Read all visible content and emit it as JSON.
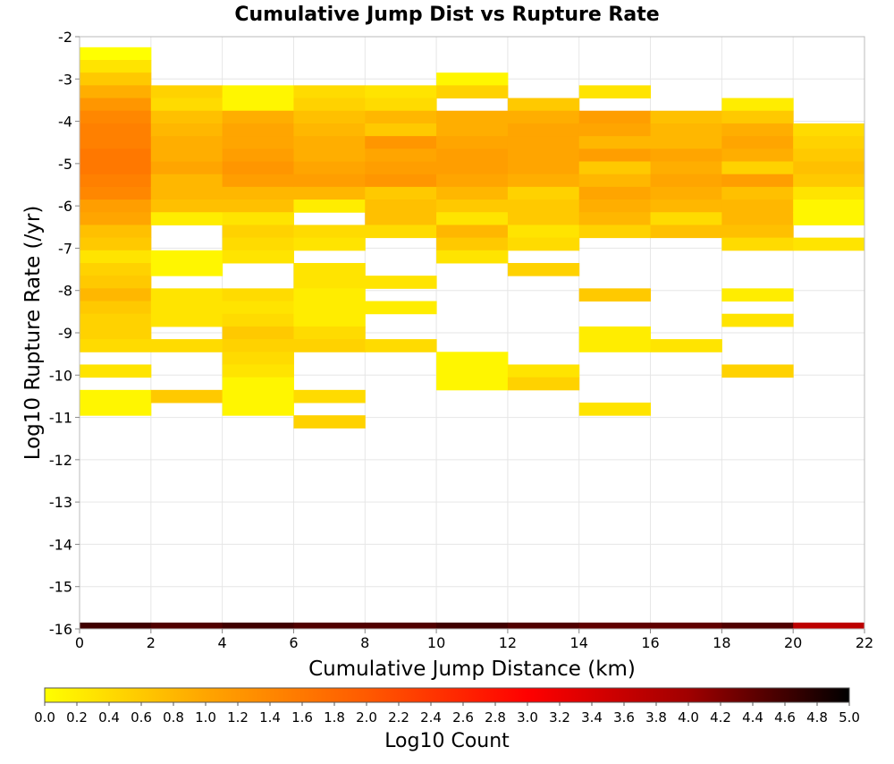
{
  "chart_data": {
    "type": "heatmap",
    "title": "Cumulative Jump Dist vs Rupture Rate",
    "xlabel": "Cumulative Jump Distance (km)",
    "ylabel": "Log10 Rupture Rate (/yr)",
    "xlim": [
      0,
      22
    ],
    "ylim": [
      -16,
      -2
    ],
    "xticks": [
      "0",
      "2",
      "4",
      "6",
      "8",
      "10",
      "12",
      "14",
      "16",
      "18",
      "20",
      "22"
    ],
    "yticks": [
      "-2",
      "-3",
      "-4",
      "-5",
      "-6",
      "-7",
      "-8",
      "-9",
      "-10",
      "-11",
      "-12",
      "-13",
      "-14",
      "-15",
      "-16"
    ],
    "x_bin_width_km": 2,
    "y_bin_height_log10": 0.3,
    "grid": true,
    "colorbar": {
      "label": "Log10 Count",
      "min": 0.0,
      "max": 5.0,
      "ticks": [
        "0.0",
        "0.2",
        "0.4",
        "0.6",
        "0.8",
        "1.0",
        "1.2",
        "1.4",
        "1.6",
        "1.8",
        "2.0",
        "2.2",
        "2.4",
        "2.6",
        "2.8",
        "3.0",
        "3.2",
        "3.4",
        "3.6",
        "3.8",
        "4.0",
        "4.2",
        "4.4",
        "4.6",
        "4.8",
        "5.0"
      ],
      "colors": [
        "#ffff00",
        "#ffa500",
        "#ff5a00",
        "#ff0000",
        "#a00000",
        "#000000"
      ]
    },
    "columns": [
      {
        "x0": 0,
        "x1": 2,
        "cells": [
          [
            -2.4,
            0.0
          ],
          [
            -2.7,
            0.3
          ],
          [
            -3.0,
            0.6
          ],
          [
            -3.3,
            0.9
          ],
          [
            -3.6,
            1.2
          ],
          [
            -3.9,
            1.4
          ],
          [
            -4.2,
            1.5
          ],
          [
            -4.5,
            1.5
          ],
          [
            -4.8,
            1.6
          ],
          [
            -5.1,
            1.6
          ],
          [
            -5.4,
            1.5
          ],
          [
            -5.7,
            1.4
          ],
          [
            -6.0,
            1.1
          ],
          [
            -6.3,
            1.0
          ],
          [
            -6.6,
            0.7
          ],
          [
            -6.9,
            0.6
          ],
          [
            -7.2,
            0.3
          ],
          [
            -7.5,
            0.5
          ],
          [
            -7.8,
            0.6
          ],
          [
            -8.1,
            0.8
          ],
          [
            -8.4,
            0.6
          ],
          [
            -8.7,
            0.5
          ],
          [
            -9.0,
            0.5
          ],
          [
            -9.3,
            0.4
          ],
          [
            -9.9,
            0.3
          ],
          [
            -10.5,
            0.1
          ],
          [
            -10.8,
            0.1
          ]
        ]
      },
      {
        "x0": 2,
        "x1": 4,
        "cells": [
          [
            -3.3,
            0.5
          ],
          [
            -3.6,
            0.4
          ],
          [
            -3.9,
            0.7
          ],
          [
            -4.2,
            0.8
          ],
          [
            -4.5,
            0.9
          ],
          [
            -4.8,
            0.9
          ],
          [
            -5.1,
            1.0
          ],
          [
            -5.4,
            0.8
          ],
          [
            -5.7,
            0.8
          ],
          [
            -6.0,
            0.7
          ],
          [
            -6.3,
            0.2
          ],
          [
            -7.2,
            0.1
          ],
          [
            -7.5,
            0.1
          ],
          [
            -8.1,
            0.3
          ],
          [
            -8.4,
            0.3
          ],
          [
            -8.7,
            0.3
          ],
          [
            -9.3,
            0.4
          ],
          [
            -10.5,
            0.6
          ]
        ]
      },
      {
        "x0": 4,
        "x1": 6,
        "cells": [
          [
            -3.3,
            0.1
          ],
          [
            -3.6,
            0.1
          ],
          [
            -3.9,
            0.9
          ],
          [
            -4.2,
            1.0
          ],
          [
            -4.5,
            1.0
          ],
          [
            -4.8,
            1.1
          ],
          [
            -5.1,
            1.2
          ],
          [
            -5.4,
            1.1
          ],
          [
            -5.7,
            0.8
          ],
          [
            -6.0,
            0.7
          ],
          [
            -6.3,
            0.3
          ],
          [
            -6.6,
            0.5
          ],
          [
            -6.9,
            0.4
          ],
          [
            -7.2,
            0.3
          ],
          [
            -8.1,
            0.4
          ],
          [
            -8.4,
            0.3
          ],
          [
            -8.7,
            0.4
          ],
          [
            -9.0,
            0.6
          ],
          [
            -9.3,
            0.5
          ],
          [
            -9.6,
            0.4
          ],
          [
            -9.9,
            0.3
          ],
          [
            -10.2,
            0.1
          ],
          [
            -10.5,
            0.1
          ],
          [
            -10.8,
            0.1
          ]
        ]
      },
      {
        "x0": 6,
        "x1": 8,
        "cells": [
          [
            -3.3,
            0.4
          ],
          [
            -3.6,
            0.5
          ],
          [
            -3.9,
            0.7
          ],
          [
            -4.2,
            0.8
          ],
          [
            -4.5,
            0.9
          ],
          [
            -4.8,
            0.9
          ],
          [
            -5.1,
            1.0
          ],
          [
            -5.4,
            1.1
          ],
          [
            -5.7,
            0.8
          ],
          [
            -6.0,
            0.2
          ],
          [
            -6.6,
            0.4
          ],
          [
            -6.9,
            0.3
          ],
          [
            -7.5,
            0.3
          ],
          [
            -7.8,
            0.3
          ],
          [
            -8.1,
            0.2
          ],
          [
            -8.4,
            0.2
          ],
          [
            -8.7,
            0.2
          ],
          [
            -9.0,
            0.4
          ],
          [
            -9.3,
            0.5
          ],
          [
            -10.5,
            0.4
          ],
          [
            -11.1,
            0.5
          ]
        ]
      },
      {
        "x0": 8,
        "x1": 10,
        "cells": [
          [
            -3.3,
            0.3
          ],
          [
            -3.6,
            0.4
          ],
          [
            -3.9,
            0.8
          ],
          [
            -4.2,
            0.6
          ],
          [
            -4.5,
            1.2
          ],
          [
            -4.8,
            1.0
          ],
          [
            -5.1,
            1.1
          ],
          [
            -5.4,
            1.2
          ],
          [
            -5.7,
            0.6
          ],
          [
            -6.0,
            0.7
          ],
          [
            -6.3,
            0.7
          ],
          [
            -6.6,
            0.4
          ],
          [
            -7.8,
            0.3
          ],
          [
            -8.4,
            0.2
          ],
          [
            -9.3,
            0.4
          ]
        ]
      },
      {
        "x0": 10,
        "x1": 12,
        "cells": [
          [
            -3.0,
            0.1
          ],
          [
            -3.3,
            0.5
          ],
          [
            -3.9,
            0.9
          ],
          [
            -4.2,
            0.9
          ],
          [
            -4.5,
            1.0
          ],
          [
            -4.8,
            1.1
          ],
          [
            -5.1,
            1.1
          ],
          [
            -5.4,
            1.0
          ],
          [
            -5.7,
            0.8
          ],
          [
            -6.0,
            0.6
          ],
          [
            -6.3,
            0.3
          ],
          [
            -6.6,
            0.8
          ],
          [
            -6.9,
            0.6
          ],
          [
            -7.2,
            0.3
          ],
          [
            -9.6,
            0.1
          ],
          [
            -9.9,
            0.1
          ],
          [
            -10.2,
            0.1
          ]
        ]
      },
      {
        "x0": 12,
        "x1": 14,
        "cells": [
          [
            -3.6,
            0.6
          ],
          [
            -3.9,
            0.9
          ],
          [
            -4.2,
            1.0
          ],
          [
            -4.5,
            1.0
          ],
          [
            -4.8,
            1.0
          ],
          [
            -5.1,
            1.0
          ],
          [
            -5.4,
            0.9
          ],
          [
            -5.7,
            0.5
          ],
          [
            -6.0,
            0.6
          ],
          [
            -6.3,
            0.6
          ],
          [
            -6.6,
            0.3
          ],
          [
            -6.9,
            0.4
          ],
          [
            -7.5,
            0.5
          ],
          [
            -9.9,
            0.3
          ],
          [
            -10.2,
            0.5
          ]
        ]
      },
      {
        "x0": 14,
        "x1": 16,
        "cells": [
          [
            -3.3,
            0.3
          ],
          [
            -3.9,
            1.1
          ],
          [
            -4.2,
            1.0
          ],
          [
            -4.5,
            0.8
          ],
          [
            -4.8,
            1.1
          ],
          [
            -5.1,
            0.6
          ],
          [
            -5.4,
            0.8
          ],
          [
            -5.7,
            1.0
          ],
          [
            -6.0,
            0.9
          ],
          [
            -6.3,
            0.8
          ],
          [
            -6.6,
            0.5
          ],
          [
            -8.1,
            0.6
          ],
          [
            -9.0,
            0.2
          ],
          [
            -9.3,
            0.2
          ],
          [
            -10.8,
            0.3
          ]
        ]
      },
      {
        "x0": 16,
        "x1": 18,
        "cells": [
          [
            -3.9,
            0.7
          ],
          [
            -4.2,
            0.8
          ],
          [
            -4.5,
            0.8
          ],
          [
            -4.8,
            1.0
          ],
          [
            -5.1,
            0.9
          ],
          [
            -5.4,
            1.0
          ],
          [
            -5.7,
            0.9
          ],
          [
            -6.0,
            0.8
          ],
          [
            -6.3,
            0.4
          ],
          [
            -6.6,
            0.7
          ],
          [
            -9.3,
            0.3
          ]
        ]
      },
      {
        "x0": 18,
        "x1": 20,
        "cells": [
          [
            -3.6,
            0.2
          ],
          [
            -3.9,
            0.6
          ],
          [
            -4.2,
            0.9
          ],
          [
            -4.5,
            1.0
          ],
          [
            -4.8,
            0.9
          ],
          [
            -5.1,
            0.5
          ],
          [
            -5.4,
            1.1
          ],
          [
            -5.7,
            0.7
          ],
          [
            -6.0,
            0.8
          ],
          [
            -6.3,
            0.8
          ],
          [
            -6.6,
            0.7
          ],
          [
            -6.9,
            0.4
          ],
          [
            -8.1,
            0.2
          ],
          [
            -8.7,
            0.3
          ],
          [
            -9.9,
            0.5
          ]
        ]
      },
      {
        "x0": 20,
        "x1": 22,
        "cells": [
          [
            -4.2,
            0.4
          ],
          [
            -4.5,
            0.5
          ],
          [
            -4.8,
            0.6
          ],
          [
            -5.1,
            0.7
          ],
          [
            -5.4,
            0.6
          ],
          [
            -5.7,
            0.3
          ],
          [
            -6.0,
            0.1
          ],
          [
            -6.3,
            0.1
          ],
          [
            -6.9,
            0.3
          ]
        ]
      }
    ],
    "bottom_row": {
      "y": -16,
      "values": [
        4.6,
        4.5,
        4.6,
        4.5,
        4.5,
        4.6,
        4.5,
        4.4,
        4.4,
        4.5,
        3.7
      ]
    }
  }
}
